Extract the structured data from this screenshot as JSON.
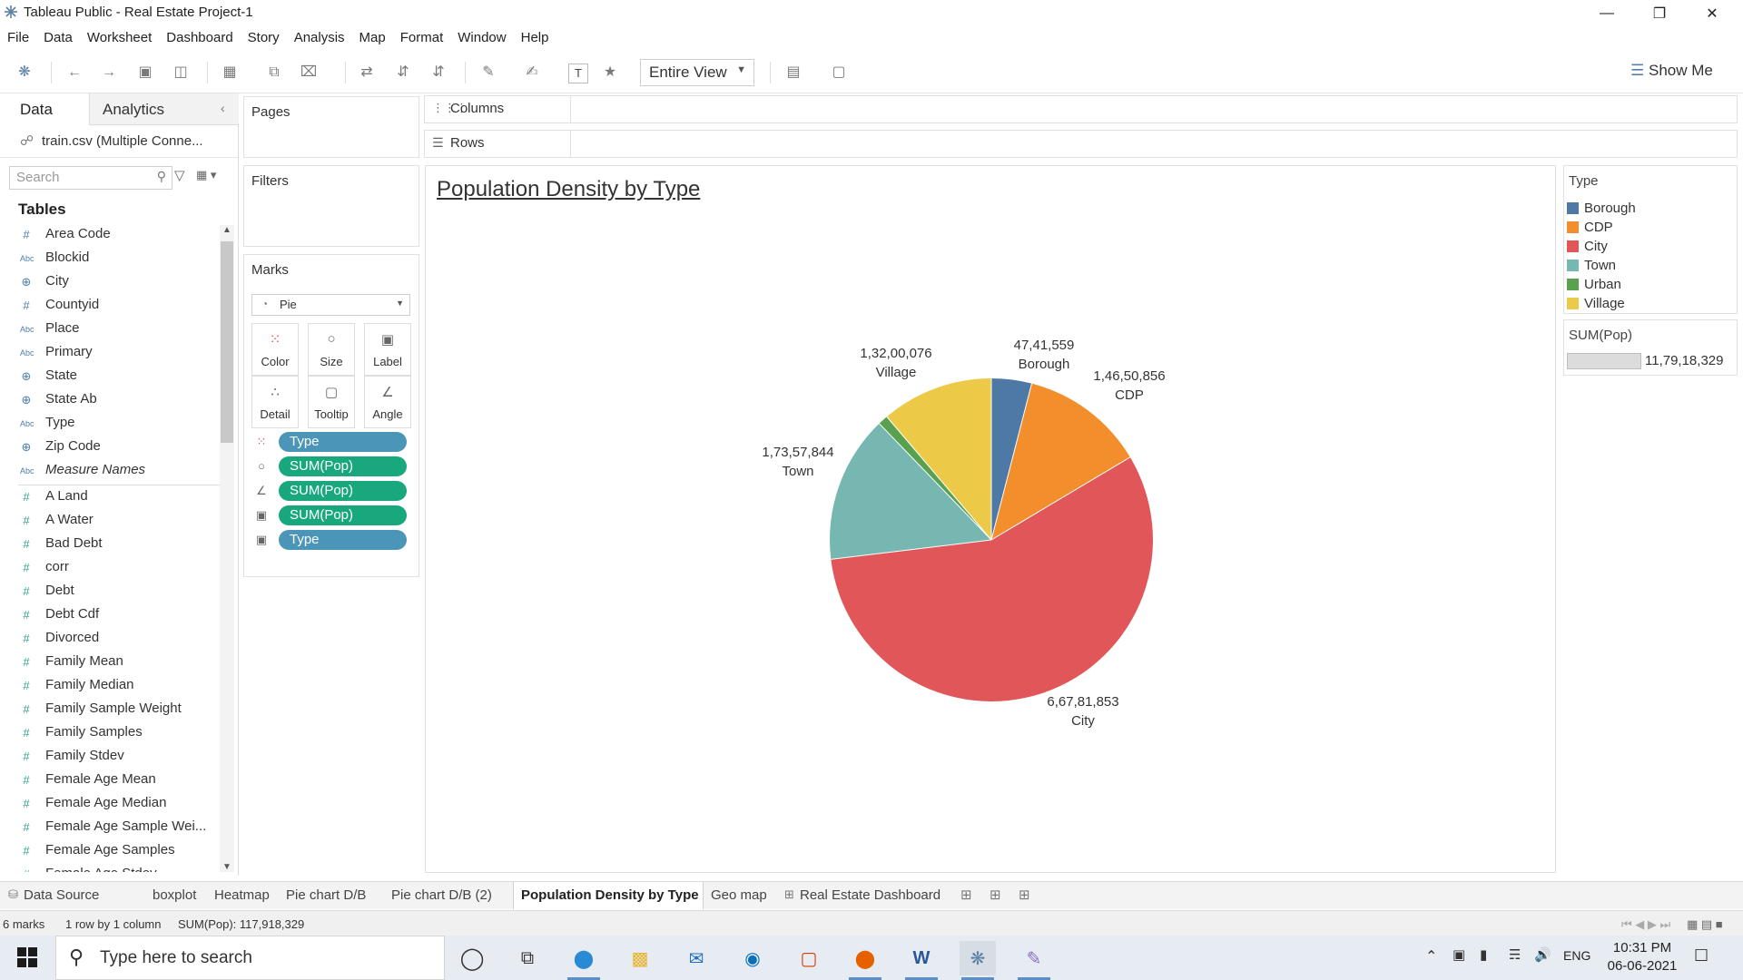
{
  "window": {
    "title": "Tableau Public - Real Estate Project-1",
    "controls": [
      "minimize",
      "restore",
      "close"
    ]
  },
  "menu": [
    "File",
    "Data",
    "Worksheet",
    "Dashboard",
    "Story",
    "Analysis",
    "Map",
    "Format",
    "Window",
    "Help"
  ],
  "toolbar": {
    "fit_select": "Entire View",
    "show_me": "Show Me"
  },
  "data_pane": {
    "tab_data": "Data",
    "tab_analytics": "Analytics",
    "datasource": "train.csv (Multiple Conne...",
    "search_placeholder": "Search",
    "tables_header": "Tables",
    "fields": [
      {
        "type": "#",
        "name": "Area Code"
      },
      {
        "type": "Abc",
        "name": "Blockid"
      },
      {
        "type": "geo",
        "name": "City"
      },
      {
        "type": "#",
        "name": "Countyid"
      },
      {
        "type": "Abc",
        "name": "Place"
      },
      {
        "type": "Abc",
        "name": "Primary"
      },
      {
        "type": "geo",
        "name": "State"
      },
      {
        "type": "geo",
        "name": "State Ab"
      },
      {
        "type": "Abc",
        "name": "Type"
      },
      {
        "type": "geo",
        "name": "Zip Code"
      },
      {
        "type": "Abc",
        "name": "Measure Names"
      },
      {
        "type": "#",
        "name": "A Land"
      },
      {
        "type": "#",
        "name": "A Water"
      },
      {
        "type": "#",
        "name": "Bad Debt"
      },
      {
        "type": "#",
        "name": "corr"
      },
      {
        "type": "#",
        "name": "Debt"
      },
      {
        "type": "#",
        "name": "Debt Cdf"
      },
      {
        "type": "#",
        "name": "Divorced"
      },
      {
        "type": "#",
        "name": "Family Mean"
      },
      {
        "type": "#",
        "name": "Family Median"
      },
      {
        "type": "#",
        "name": "Family Sample Weight"
      },
      {
        "type": "#",
        "name": "Family Samples"
      },
      {
        "type": "#",
        "name": "Family Stdev"
      },
      {
        "type": "#",
        "name": "Female Age Mean"
      },
      {
        "type": "#",
        "name": "Female Age Median"
      },
      {
        "type": "#",
        "name": "Female Age Sample Wei..."
      },
      {
        "type": "#",
        "name": "Female Age Samples"
      },
      {
        "type": "#",
        "name": "Female Age Stdev"
      }
    ]
  },
  "shelves": {
    "pages": "Pages",
    "filters": "Filters",
    "marks": "Marks",
    "mark_type": "Pie",
    "mark_buttons": [
      "Color",
      "Size",
      "Label",
      "Detail",
      "Tooltip",
      "Angle"
    ],
    "pills": [
      {
        "icon": "color",
        "label": "Type",
        "kind": "dim"
      },
      {
        "icon": "size",
        "label": "SUM(Pop)",
        "kind": "meas"
      },
      {
        "icon": "angle",
        "label": "SUM(Pop)",
        "kind": "meas"
      },
      {
        "icon": "label",
        "label": "SUM(Pop)",
        "kind": "meas"
      },
      {
        "icon": "label",
        "label": "Type",
        "kind": "dim"
      }
    ],
    "columns": "Columns",
    "rows": "Rows"
  },
  "view": {
    "title": "Population Density by Type"
  },
  "chart_data": {
    "type": "pie",
    "title": "Population Density by Type",
    "categories": [
      "Borough",
      "CDP",
      "City",
      "Town",
      "Urban",
      "Village"
    ],
    "values": [
      4741559,
      14650856,
      66781853,
      17357844,
      1186141,
      13200076
    ],
    "value_labels": [
      "47,41,559",
      "1,46,50,856",
      "6,67,81,853",
      "1,73,57,844",
      "",
      "1,32,00,076"
    ],
    "colors": [
      "#4e79a7",
      "#f28e2b",
      "#e15759",
      "#76b7b2",
      "#59a14f",
      "#edc948"
    ],
    "legend_placement": "right"
  },
  "legend": {
    "title": "Type",
    "items": [
      {
        "label": "Borough",
        "color": "#4e79a7"
      },
      {
        "label": "CDP",
        "color": "#f28e2b"
      },
      {
        "label": "City",
        "color": "#e15759"
      },
      {
        "label": "Town",
        "color": "#76b7b2"
      },
      {
        "label": "Urban",
        "color": "#59a14f"
      },
      {
        "label": "Village",
        "color": "#edc948"
      }
    ]
  },
  "size_legend": {
    "title": "SUM(Pop)",
    "value": "11,79,18,329"
  },
  "sheet_tabs": [
    {
      "label": "Data Source",
      "active": false
    },
    {
      "label": "boxplot",
      "active": false
    },
    {
      "label": "Heatmap",
      "active": false
    },
    {
      "label": "Pie chart D/B",
      "active": false
    },
    {
      "label": "Pie chart D/B (2)",
      "active": false
    },
    {
      "label": "Population Density by Type",
      "active": true
    },
    {
      "label": "Geo map",
      "active": false
    },
    {
      "label": "Real Estate Dashboard",
      "active": false
    }
  ],
  "status": {
    "marks": "6 marks",
    "dims": "1 row by 1 column",
    "sum": "SUM(Pop): 117,918,329"
  },
  "taskbar": {
    "search_placeholder": "Type here to search",
    "lang": "ENG",
    "time": "10:31 PM",
    "date": "06-06-2021"
  }
}
